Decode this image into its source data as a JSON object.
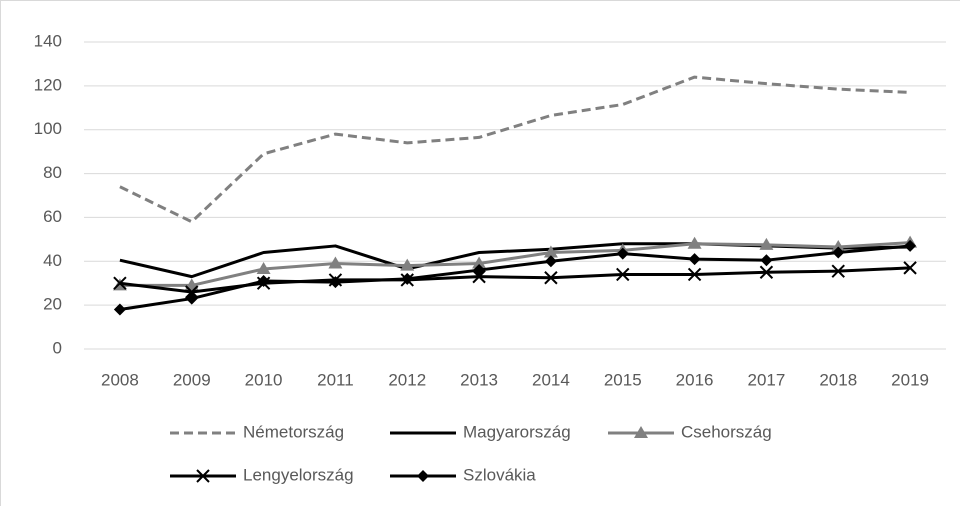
{
  "chart_data": {
    "type": "line",
    "categories": [
      "2008",
      "2009",
      "2010",
      "2011",
      "2012",
      "2013",
      "2014",
      "2015",
      "2016",
      "2017",
      "2018",
      "2019"
    ],
    "series": [
      {
        "name": "Németország",
        "color": "#808080",
        "dashed": true,
        "marker": "none",
        "values": [
          74,
          58,
          89,
          98,
          94,
          96.5,
          106.5,
          111.5,
          124,
          121,
          118.5,
          117
        ]
      },
      {
        "name": "Magyarország",
        "color": "#000000",
        "dashed": false,
        "marker": "none",
        "values": [
          40.5,
          33,
          44,
          47,
          36.5,
          44,
          45.5,
          48,
          48,
          47,
          46,
          46.5
        ]
      },
      {
        "name": "Csehország",
        "color": "#808080",
        "dashed": false,
        "marker": "triangle",
        "values": [
          29,
          29,
          36.5,
          39,
          38,
          39,
          44,
          45,
          48,
          47.5,
          46.5,
          48.5
        ]
      },
      {
        "name": "Lengyelország",
        "color": "#000000",
        "dashed": false,
        "marker": "x",
        "values": [
          30,
          26,
          30,
          31.5,
          31.5,
          33,
          32.5,
          34,
          34,
          35,
          35.5,
          37
        ]
      },
      {
        "name": "Szlovákia",
        "color": "#000000",
        "dashed": false,
        "marker": "diamond",
        "values": [
          18,
          23,
          31,
          30.5,
          32,
          36,
          40,
          43.5,
          41,
          40.5,
          44,
          47
        ]
      }
    ],
    "ylim": [
      0,
      140
    ],
    "yticks": [
      0,
      20,
      40,
      60,
      80,
      100,
      120,
      140
    ],
    "grid": true,
    "legend": "bottom"
  }
}
